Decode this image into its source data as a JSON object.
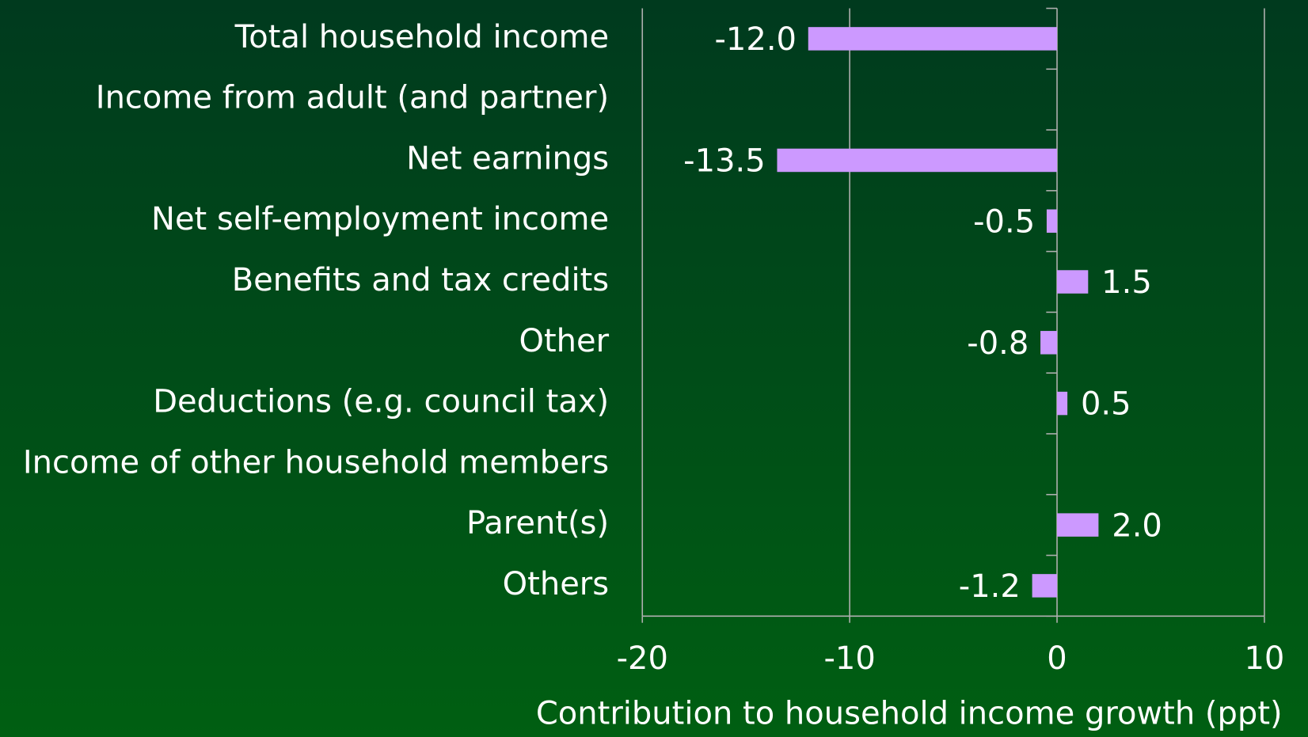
{
  "chart_data": {
    "type": "barh",
    "categories": [
      "Total household income",
      "Income from adult (and partner)",
      "Net earnings",
      "Net self-employment income",
      "Benefits and tax credits",
      "Other",
      "Deductions (e.g. council tax)",
      "Income of other household members",
      "Parent(s)",
      "Others"
    ],
    "values": [
      -12,
      null,
      -13.5,
      -0.5,
      1.5,
      -0.8,
      0.5,
      null,
      2,
      -1.2
    ],
    "value_labels": [
      "-12.0",
      null,
      "-13.5",
      "-0.5",
      "1.5",
      "-0.8",
      "0.5",
      null,
      "2.0",
      "-1.2"
    ],
    "color": "#cc99ff",
    "xlabel": "Contribution to household income growth (ppt)",
    "xlim": [
      -20,
      10
    ],
    "xticks": [
      -20,
      -10,
      0,
      10
    ],
    "grid": true
  }
}
